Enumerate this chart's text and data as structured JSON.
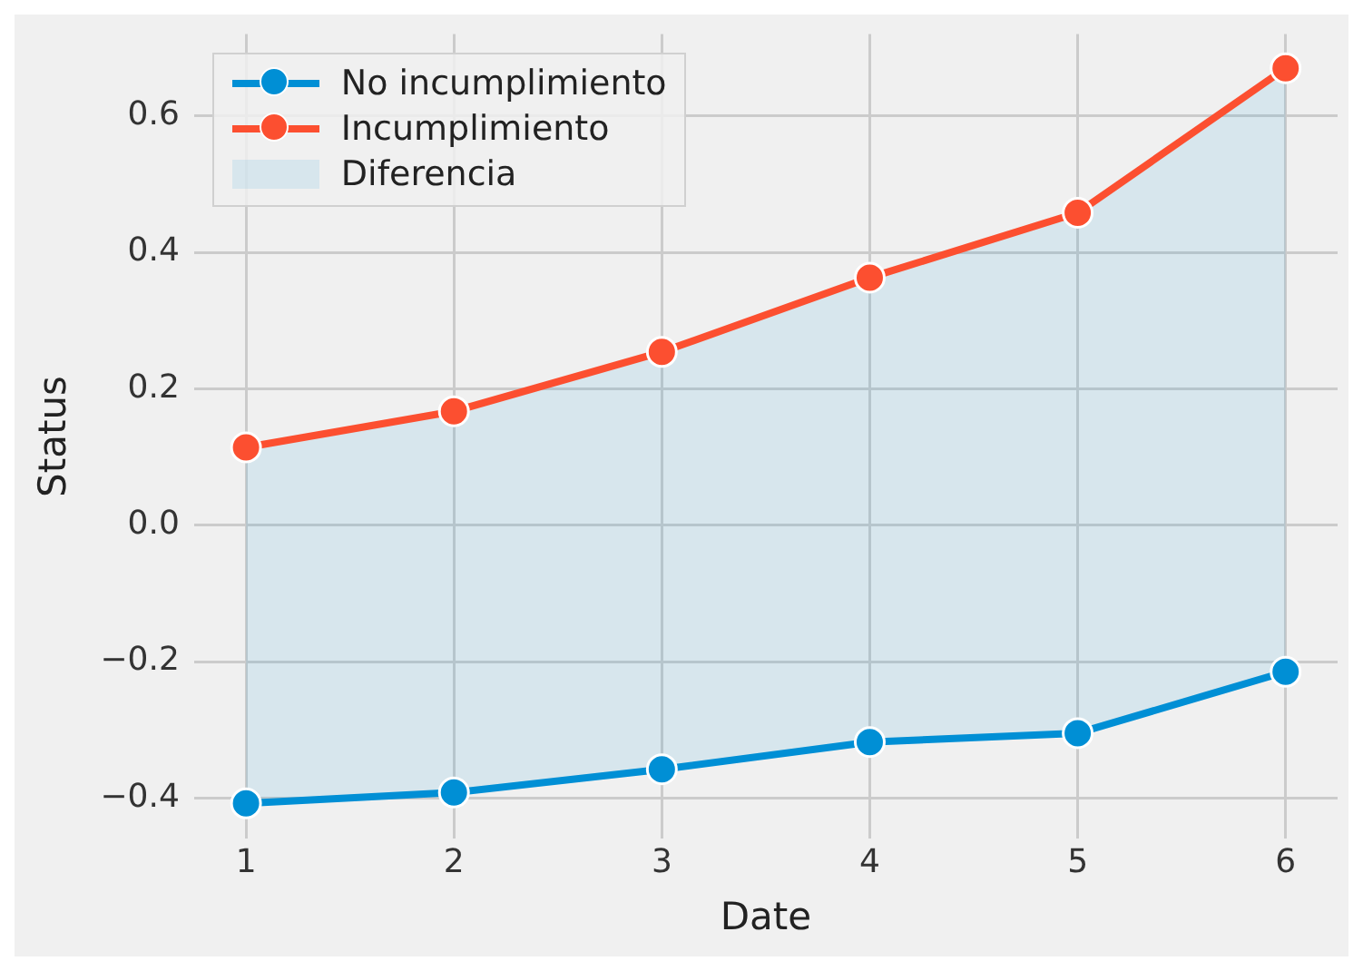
{
  "chart_data": {
    "type": "line",
    "xlabel": "Date",
    "ylabel": "Status",
    "x": [
      1,
      2,
      3,
      4,
      5,
      6
    ],
    "series": [
      {
        "name": "No incumplimiento",
        "color": "#008fd5",
        "values": [
          -0.408,
          -0.392,
          -0.358,
          -0.318,
          -0.305,
          -0.215
        ],
        "lower": [
          -0.408,
          -0.392,
          -0.358,
          -0.318,
          -0.305,
          -0.215
        ],
        "upper": [
          0.114,
          0.167,
          0.254,
          0.363,
          0.458,
          0.67
        ]
      },
      {
        "name": "Incumplimiento",
        "color": "#fc4f30",
        "values": [
          0.114,
          0.167,
          0.254,
          0.363,
          0.458,
          0.67
        ]
      }
    ],
    "annotations": [
      "Diferencia"
    ],
    "xlim": [
      0.75,
      6.25
    ],
    "xticks": [
      1,
      2,
      3,
      4,
      5,
      6
    ],
    "ylim": [
      -0.46,
      0.72
    ],
    "yticks": [
      {
        "value": -0.4,
        "label": "−0.4"
      },
      {
        "value": -0.2,
        "label": "−0.2"
      },
      {
        "value": 0,
        "label": "0.0"
      },
      {
        "value": 0.2,
        "label": "0.2"
      },
      {
        "value": 0.4,
        "label": "0.4"
      },
      {
        "value": 0.6,
        "label": "0.6"
      }
    ],
    "grid": true,
    "legend": "top left",
    "marker": "circle",
    "line_style": "solid"
  }
}
